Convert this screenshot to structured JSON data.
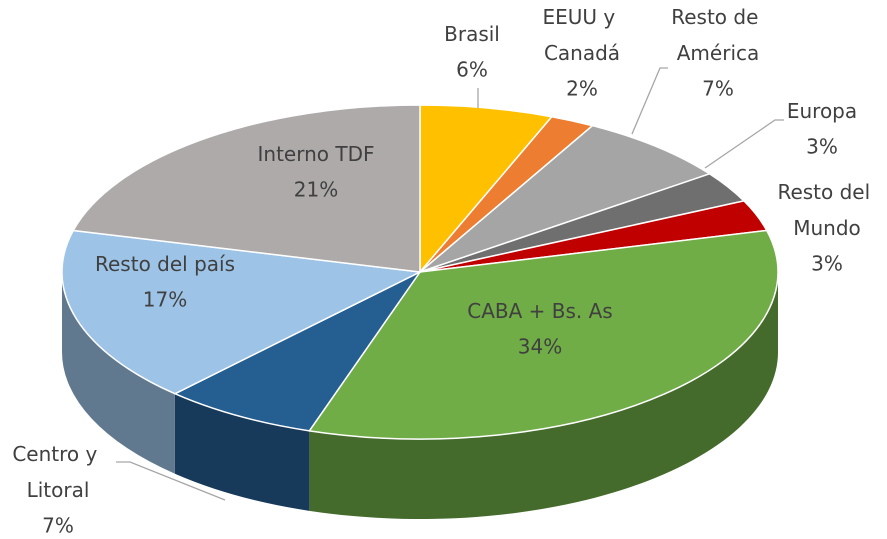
{
  "chart_data": {
    "type": "pie",
    "categories": [
      "Brasil",
      "EEUU y Canadá",
      "Resto de América",
      "Europa",
      "Resto del Mundo",
      "CABA + Bs. As",
      "Centro y Litoral",
      "Resto del país",
      "Interno TDF"
    ],
    "values": [
      6,
      2,
      7,
      3,
      3,
      34,
      7,
      17,
      21
    ],
    "value_labels": [
      "6%",
      "2%",
      "7%",
      "3%",
      "3%",
      "34%",
      "7%",
      "17%",
      "21%"
    ],
    "colors": [
      "#ffc000",
      "#ed7d31",
      "#a5a5a5",
      "#6f6f6f",
      "#c00000",
      "#70ad47",
      "#255e91",
      "#9dc3e6",
      "#aeaaaa"
    ]
  }
}
